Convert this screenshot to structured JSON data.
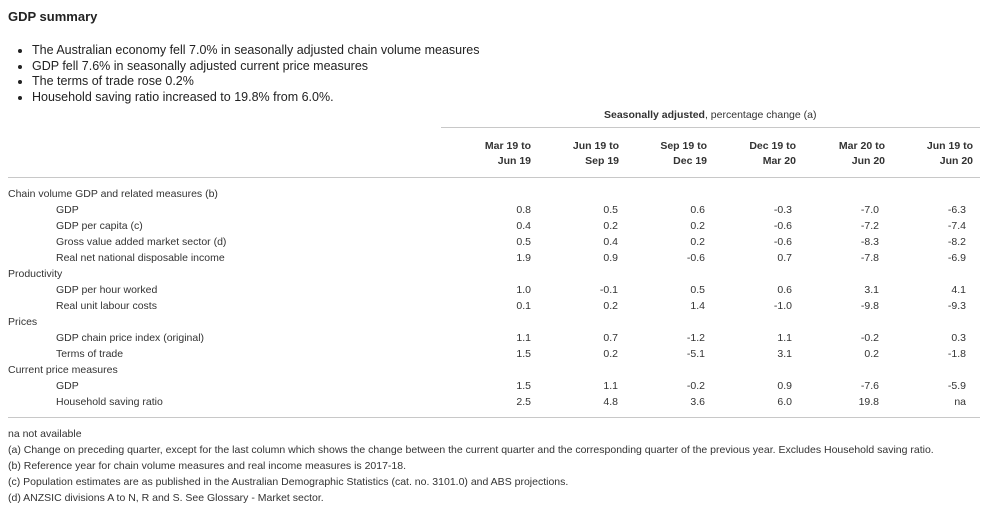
{
  "title": "GDP summary",
  "bullets": [
    "The Australian economy fell 7.0% in seasonally adjusted chain volume measures",
    "GDP fell 7.6% in seasonally adjusted current price measures",
    "The terms of trade rose 0.2%",
    "Household saving ratio increased to 19.8% from 6.0%."
  ],
  "table": {
    "group_header_bold": "Seasonally adjusted",
    "group_header_rest": ", percentage change (a)",
    "columns": [
      {
        "line1": "Mar 19 to",
        "line2": "Jun 19"
      },
      {
        "line1": "Jun 19 to",
        "line2": "Sep 19"
      },
      {
        "line1": "Sep 19 to",
        "line2": "Dec 19"
      },
      {
        "line1": "Dec 19 to",
        "line2": "Mar 20"
      },
      {
        "line1": "Mar 20 to",
        "line2": "Jun 20"
      },
      {
        "line1": "Jun 19 to",
        "line2": "Jun 20"
      }
    ],
    "rows": [
      {
        "type": "section",
        "label": "Chain volume GDP and related measures (b)"
      },
      {
        "type": "data",
        "label": "GDP",
        "values": [
          "0.8",
          "0.5",
          "0.6",
          "-0.3",
          "-7.0",
          "-6.3"
        ]
      },
      {
        "type": "data",
        "label": "GDP per capita (c)",
        "values": [
          "0.4",
          "0.2",
          "0.2",
          "-0.6",
          "-7.2",
          "-7.4"
        ]
      },
      {
        "type": "data",
        "label": "Gross value added market sector (d)",
        "values": [
          "0.5",
          "0.4",
          "0.2",
          "-0.6",
          "-8.3",
          "-8.2"
        ]
      },
      {
        "type": "data",
        "label": "Real net national disposable income",
        "values": [
          "1.9",
          "0.9",
          "-0.6",
          "0.7",
          "-7.8",
          "-6.9"
        ]
      },
      {
        "type": "section",
        "label": "Productivity"
      },
      {
        "type": "data",
        "label": "GDP per hour worked",
        "values": [
          "1.0",
          "-0.1",
          "0.5",
          "0.6",
          "3.1",
          "4.1"
        ]
      },
      {
        "type": "data",
        "label": "Real unit labour costs",
        "values": [
          "0.1",
          "0.2",
          "1.4",
          "-1.0",
          "-9.8",
          "-9.3"
        ]
      },
      {
        "type": "section",
        "label": "Prices"
      },
      {
        "type": "data",
        "label": "GDP chain price index (original)",
        "values": [
          "1.1",
          "0.7",
          "-1.2",
          "1.1",
          "-0.2",
          "0.3"
        ]
      },
      {
        "type": "data",
        "label": "Terms of trade",
        "values": [
          "1.5",
          "0.2",
          "-5.1",
          "3.1",
          "0.2",
          "-1.8"
        ]
      },
      {
        "type": "section",
        "label": "Current price measures"
      },
      {
        "type": "data",
        "label": "GDP",
        "values": [
          "1.5",
          "1.1",
          "-0.2",
          "0.9",
          "-7.6",
          "-5.9"
        ]
      },
      {
        "type": "data",
        "label": "Household saving ratio",
        "values": [
          "2.5",
          "4.8",
          "3.6",
          "6.0",
          "19.8",
          "na"
        ]
      }
    ]
  },
  "notes": [
    "na not available",
    "(a) Change on preceding quarter, except for the last column which shows the change between the current quarter and the corresponding quarter of the previous year. Excludes Household saving ratio.",
    "(b) Reference year for chain volume measures and real income measures is 2017-18.",
    "(c) Population estimates are as published in the Australian Demographic Statistics (cat. no. 3101.0) and ABS projections.",
    "(d) ANZSIC divisions A to N, R and S. See Glossary - Market sector."
  ]
}
